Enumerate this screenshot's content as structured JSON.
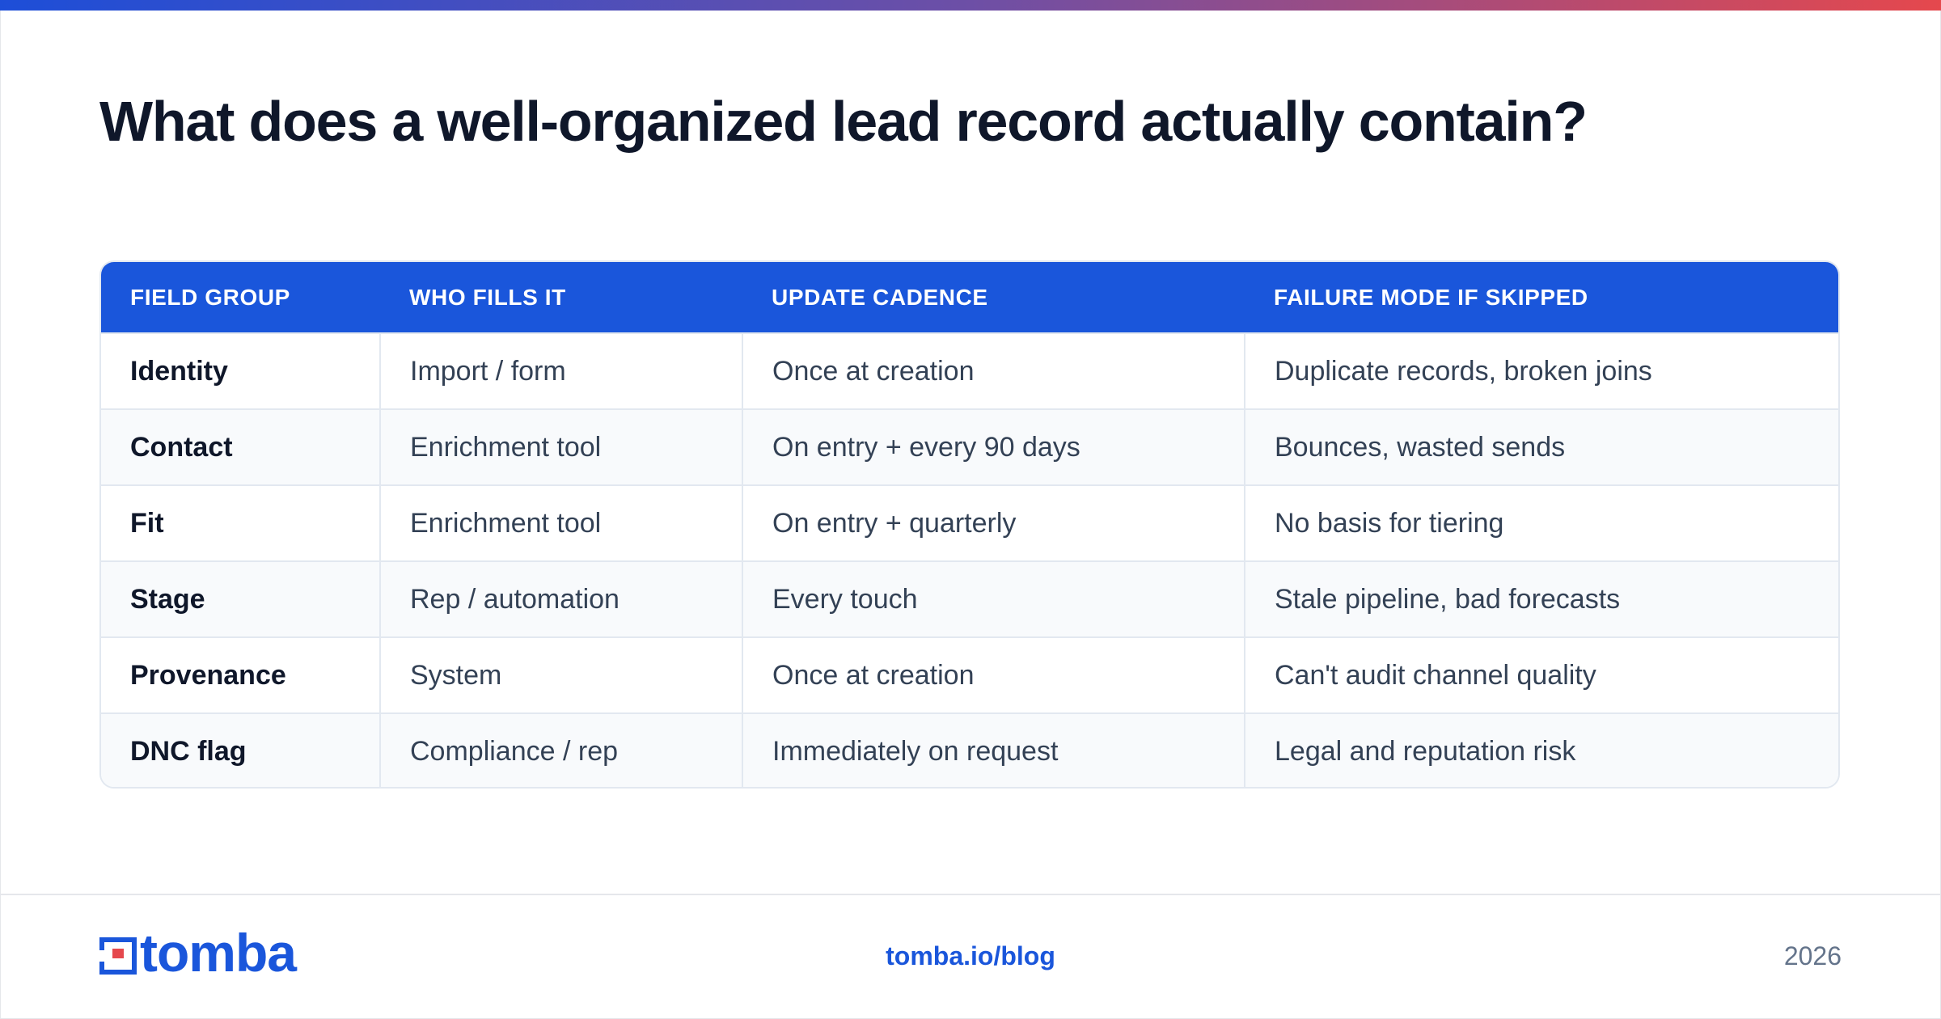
{
  "colors": {
    "accent": "#1a56db",
    "gradient_start": "#1d4ed8",
    "gradient_end": "#e5484d",
    "logo_red": "#e5484d"
  },
  "title": "What does a well-organized lead record actually contain?",
  "table": {
    "headers": [
      "FIELD GROUP",
      "WHO FILLS IT",
      "UPDATE CADENCE",
      "FAILURE MODE IF SKIPPED"
    ],
    "rows": [
      [
        "Identity",
        "Import / form",
        "Once at creation",
        "Duplicate records, broken joins"
      ],
      [
        "Contact",
        "Enrichment tool",
        "On entry + every 90 days",
        "Bounces, wasted sends"
      ],
      [
        "Fit",
        "Enrichment tool",
        "On entry + quarterly",
        "No basis for tiering"
      ],
      [
        "Stage",
        "Rep / automation",
        "Every touch",
        "Stale pipeline, bad forecasts"
      ],
      [
        "Provenance",
        "System",
        "Once at creation",
        "Can't audit channel quality"
      ],
      [
        "DNC flag",
        "Compliance / rep",
        "Immediately on request",
        "Legal and reputation risk"
      ]
    ]
  },
  "footer": {
    "logo_icon": "tomba-logo-icon",
    "logo_text": "tomba",
    "url": "tomba.io/blog",
    "year": "2026"
  }
}
